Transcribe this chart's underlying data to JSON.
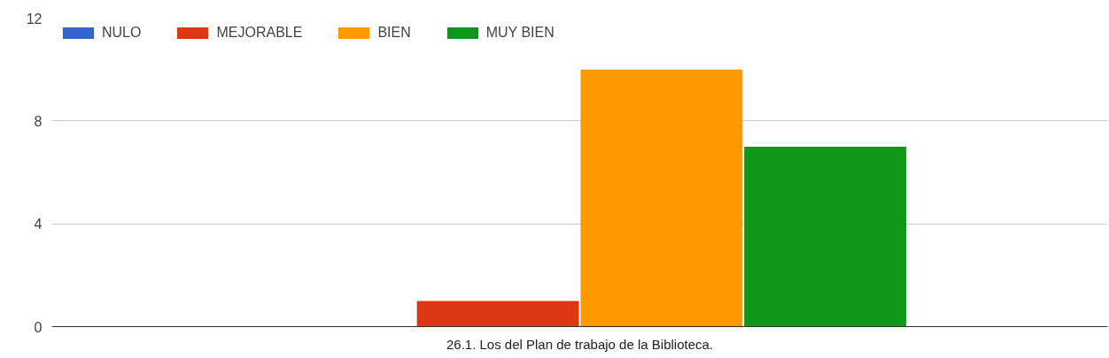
{
  "chart_data": {
    "type": "bar",
    "categories": [
      "26.1. Los del Plan de trabajo de la Biblioteca."
    ],
    "series": [
      {
        "name": "NULO",
        "color": "#3366cc",
        "values": [
          0
        ]
      },
      {
        "name": "MEJORABLE",
        "color": "#dc3912",
        "values": [
          1
        ]
      },
      {
        "name": "BIEN",
        "color": "#ff9900",
        "values": [
          10
        ]
      },
      {
        "name": "MUY BIEN",
        "color": "#109618",
        "values": [
          7
        ]
      }
    ],
    "ylim": [
      0,
      12
    ],
    "yticks": [
      0,
      4,
      8,
      12
    ],
    "grid": "y",
    "legend": "top left"
  }
}
